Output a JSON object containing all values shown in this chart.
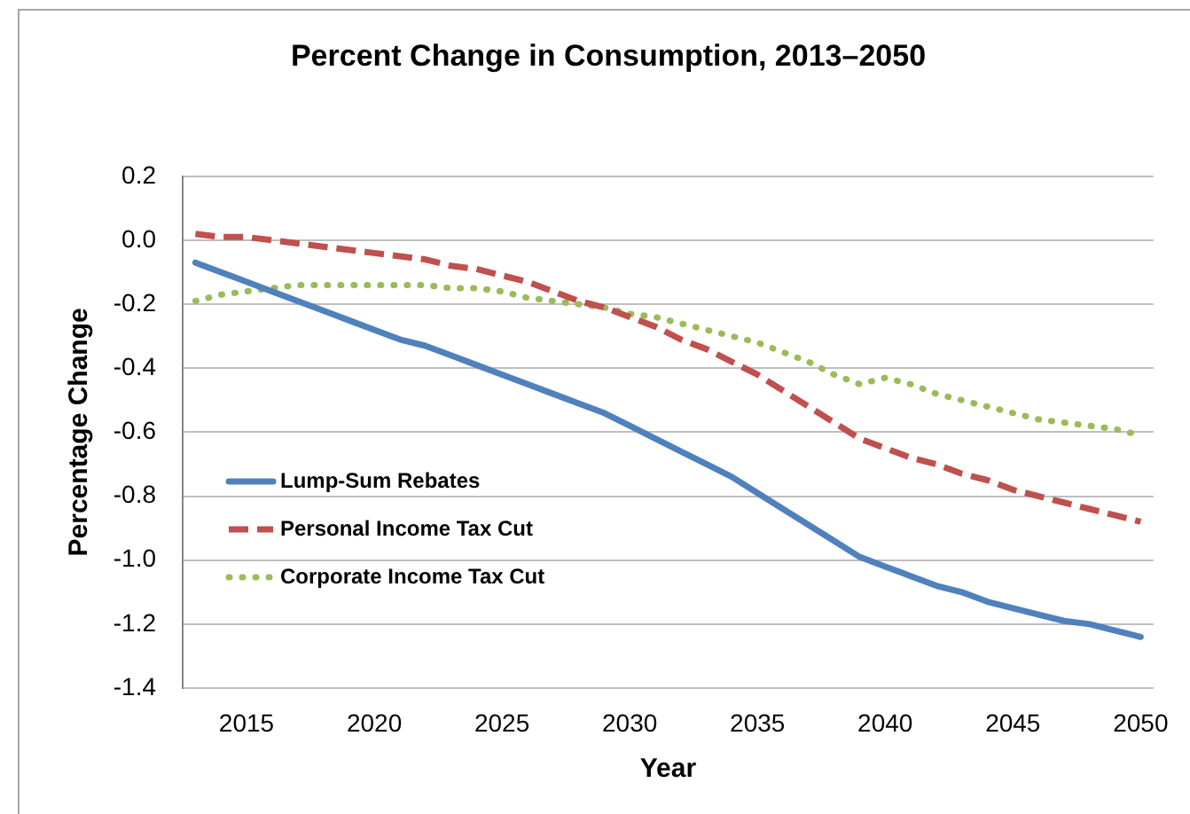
{
  "chart_data": {
    "type": "line",
    "title": "Percent Change in Consumption, 2013–2050",
    "xlabel": "Year",
    "ylabel": "Percentage Change",
    "x": [
      2013,
      2014,
      2015,
      2016,
      2017,
      2018,
      2019,
      2020,
      2021,
      2022,
      2023,
      2024,
      2025,
      2026,
      2027,
      2028,
      2029,
      2030,
      2031,
      2032,
      2033,
      2034,
      2035,
      2036,
      2037,
      2038,
      2039,
      2040,
      2041,
      2042,
      2043,
      2044,
      2045,
      2046,
      2047,
      2048,
      2049,
      2050
    ],
    "series": [
      {
        "name": "Lump-Sum Rebates",
        "color": "#4f81bd",
        "line_style": "solid",
        "values": [
          -0.07,
          -0.1,
          -0.13,
          -0.16,
          -0.19,
          -0.22,
          -0.25,
          -0.28,
          -0.31,
          -0.33,
          -0.36,
          -0.39,
          -0.42,
          -0.45,
          -0.48,
          -0.51,
          -0.54,
          -0.58,
          -0.62,
          -0.66,
          -0.7,
          -0.74,
          -0.79,
          -0.84,
          -0.89,
          -0.94,
          -0.99,
          -1.02,
          -1.05,
          -1.08,
          -1.1,
          -1.13,
          -1.15,
          -1.17,
          -1.19,
          -1.2,
          -1.22,
          -1.24
        ]
      },
      {
        "name": "Personal Income Tax Cut",
        "color": "#c0504d",
        "line_style": "dashed",
        "values": [
          0.02,
          0.01,
          0.01,
          0.0,
          -0.01,
          -0.02,
          -0.03,
          -0.04,
          -0.05,
          -0.06,
          -0.08,
          -0.09,
          -0.11,
          -0.13,
          -0.16,
          -0.19,
          -0.21,
          -0.24,
          -0.27,
          -0.31,
          -0.34,
          -0.38,
          -0.42,
          -0.47,
          -0.52,
          -0.57,
          -0.62,
          -0.65,
          -0.68,
          -0.7,
          -0.73,
          -0.75,
          -0.78,
          -0.8,
          -0.82,
          -0.84,
          -0.86,
          -0.88
        ]
      },
      {
        "name": "Corporate Income Tax Cut",
        "color": "#9bbb59",
        "line_style": "dotted",
        "values": [
          -0.19,
          -0.17,
          -0.16,
          -0.15,
          -0.14,
          -0.14,
          -0.14,
          -0.14,
          -0.14,
          -0.14,
          -0.15,
          -0.15,
          -0.16,
          -0.18,
          -0.19,
          -0.2,
          -0.21,
          -0.23,
          -0.24,
          -0.26,
          -0.28,
          -0.3,
          -0.32,
          -0.35,
          -0.38,
          -0.42,
          -0.45,
          -0.43,
          -0.45,
          -0.48,
          -0.5,
          -0.52,
          -0.54,
          -0.56,
          -0.57,
          -0.58,
          -0.59,
          -0.61
        ]
      }
    ],
    "xlim": [
      2012.5,
      2050.5
    ],
    "xticks": [
      2015,
      2020,
      2025,
      2030,
      2035,
      2040,
      2045,
      2050
    ],
    "ylim": [
      -1.4,
      0.2
    ],
    "yticks": [
      {
        "value": -1.4,
        "label": "-1.4"
      },
      {
        "value": -1.2,
        "label": "-1.2"
      },
      {
        "value": -1,
        "label": "-1.0"
      },
      {
        "value": -0.8,
        "label": "-0.8"
      },
      {
        "value": -0.6,
        "label": "-0.6"
      },
      {
        "value": -0.4,
        "label": "-0.4"
      },
      {
        "value": -0.2,
        "label": "-0.2"
      },
      {
        "value": 0,
        "label": "0.0"
      },
      0.2
    ],
    "grid": "y",
    "legend": "left"
  }
}
